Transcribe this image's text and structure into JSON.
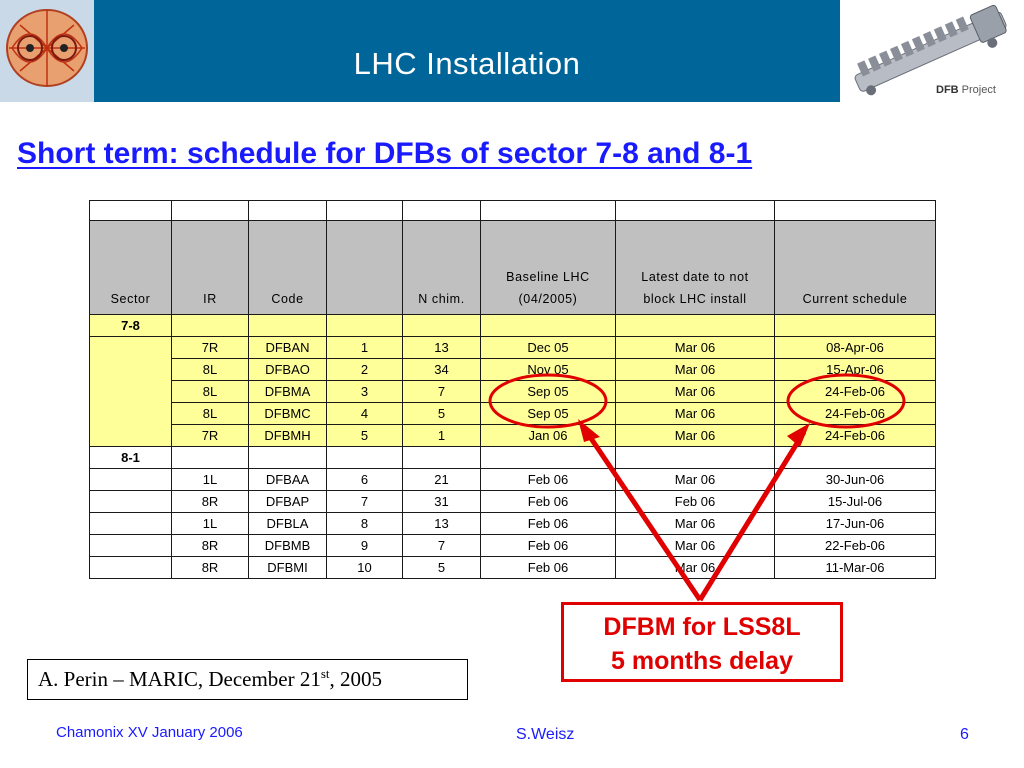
{
  "header": {
    "title": "LHC Installation",
    "project_label_bold": "DFB",
    "project_label": "Project"
  },
  "slide_title": "Short term: schedule for DFBs of sector 7-8 and 8-1",
  "table": {
    "headers": [
      "Sector",
      "IR",
      "Code",
      "",
      "N chim.",
      "Baseline LHC (04/2005)",
      "Latest date to not block LHC install",
      "Current schedule"
    ],
    "header_lines": {
      "baseline_line1": "Baseline LHC",
      "baseline_line2": "(04/2005)",
      "latest_line1": "Latest date to not",
      "latest_line2": "block LHC install"
    },
    "sectors": [
      {
        "name": "7-8",
        "rows": [
          [
            "7R",
            "DFBAN",
            "1",
            "13",
            "Dec 05",
            "Mar 06",
            "08-Apr-06"
          ],
          [
            "8L",
            "DFBAO",
            "2",
            "34",
            "Nov 05",
            "Mar 06",
            "15-Apr-06"
          ],
          [
            "8L",
            "DFBMA",
            "3",
            "7",
            "Sep 05",
            "Mar 06",
            "24-Feb-06"
          ],
          [
            "8L",
            "DFBMC",
            "4",
            "5",
            "Sep 05",
            "Mar 06",
            "24-Feb-06"
          ],
          [
            "7R",
            "DFBMH",
            "5",
            "1",
            "Jan 06",
            "Mar 06",
            "24-Feb-06"
          ]
        ]
      },
      {
        "name": "8-1",
        "rows": [
          [
            "1L",
            "DFBAA",
            "6",
            "21",
            "Feb 06",
            "Mar 06",
            "30-Jun-06"
          ],
          [
            "8R",
            "DFBAP",
            "7",
            "31",
            "Feb 06",
            "Feb 06",
            "15-Jul-06"
          ],
          [
            "1L",
            "DFBLA",
            "8",
            "13",
            "Feb 06",
            "Mar 06",
            "17-Jun-06"
          ],
          [
            "8R",
            "DFBMB",
            "9",
            "7",
            "Feb 06",
            "Mar 06",
            "22-Feb-06"
          ],
          [
            "8R",
            "DFBMI",
            "10",
            "5",
            "Feb 06",
            "Mar 06",
            "11-Mar-06"
          ]
        ]
      }
    ]
  },
  "callout": {
    "line1": "DFBM for LSS8L",
    "line2": "5 months delay"
  },
  "citation": {
    "prefix": "A. Perin – MARIC, December 21",
    "sup": "st",
    "suffix": ", 2005"
  },
  "footer": {
    "left": "Chamonix XV January 2006",
    "center": "S.Weisz",
    "page": "6"
  },
  "colors": {
    "header_band": "#006699",
    "title_blue": "#1a1aff",
    "highlight_yellow": "#ffff99",
    "header_grey": "#c0c0c0",
    "annotation_red": "#e00000"
  }
}
